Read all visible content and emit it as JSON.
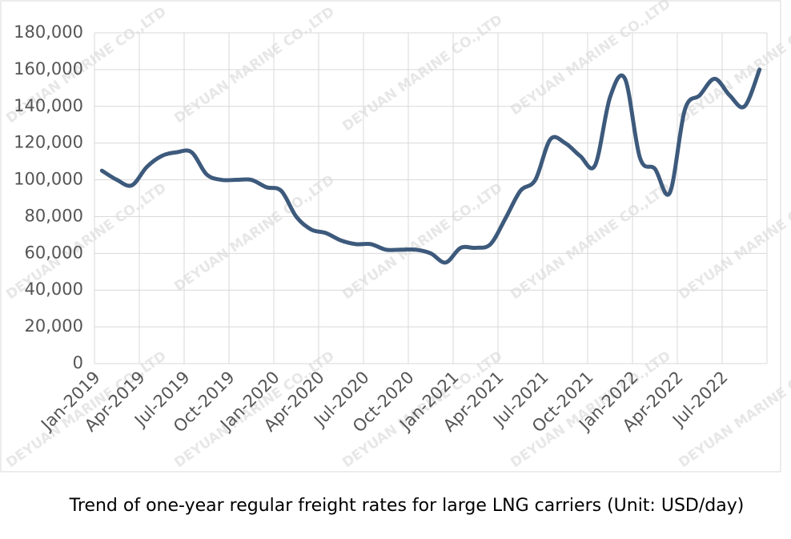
{
  "chart_data": {
    "type": "line",
    "caption": "Trend of one-year regular freight rates for large LNG carriers (Unit: USD/day)",
    "watermark": "DEYUAN MARINE CO.,LTD",
    "categories": [
      "Jan-2019",
      null,
      null,
      "Apr-2019",
      null,
      null,
      "Jul-2019",
      null,
      null,
      "Oct-2019",
      null,
      null,
      "Jan-2020",
      null,
      null,
      "Apr-2020",
      null,
      null,
      "Jul-2020",
      null,
      null,
      "Oct-2020",
      null,
      null,
      "Jan-2021",
      null,
      null,
      "Apr-2021",
      null,
      null,
      "Jul-2021",
      null,
      null,
      "Oct-2021",
      null,
      null,
      "Jan-2022",
      null,
      null,
      "Apr-2022",
      null,
      null,
      "Jul-2022",
      null,
      null
    ],
    "series": [
      {
        "color": "#3d5a7c",
        "values": [
          105000,
          100000,
          97000,
          107000,
          113000,
          115000,
          115000,
          103000,
          100000,
          100000,
          100000,
          96000,
          94000,
          80000,
          73000,
          71000,
          67000,
          65000,
          65000,
          62000,
          62000,
          62000,
          60000,
          55000,
          63000,
          63000,
          65000,
          79000,
          94000,
          100000,
          122000,
          120000,
          113000,
          108000,
          145000,
          155000,
          112000,
          106000,
          93000,
          138000,
          146000,
          155000,
          146000,
          140000,
          160000
        ]
      }
    ],
    "ylim": [
      0,
      180000
    ],
    "yticks": [
      0,
      {
        "value": 20000,
        "label": "20,000"
      },
      {
        "value": 40000,
        "label": "40,000"
      },
      {
        "value": 60000,
        "label": "60,000"
      },
      {
        "value": 80000,
        "label": "80,000"
      },
      {
        "value": 100000,
        "label": "100,000"
      },
      {
        "value": 120000,
        "label": "120,000"
      },
      {
        "value": 140000,
        "label": "140,000"
      },
      {
        "value": 160000,
        "label": "160,000"
      },
      {
        "value": 180000,
        "label": "180,000"
      }
    ],
    "grid": true
  }
}
